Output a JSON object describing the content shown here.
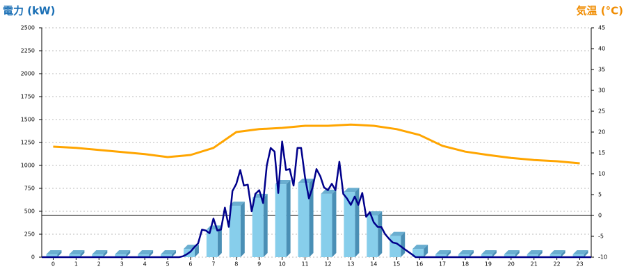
{
  "chart_data": {
    "type": "combo",
    "y_label": "電力 (kW)",
    "y2_label": "気温 (°C)",
    "categories": [
      "0",
      "1",
      "2",
      "3",
      "4",
      "5",
      "6",
      "7",
      "8",
      "9",
      "10",
      "11",
      "12",
      "13",
      "14",
      "15",
      "16",
      "17",
      "18",
      "19",
      "20",
      "21",
      "22",
      "23"
    ],
    "ylim": [
      0,
      2500
    ],
    "yticks": [
      0,
      250,
      500,
      750,
      1000,
      1250,
      1500,
      1750,
      2000,
      2250,
      2500
    ],
    "y2lim": [
      -10,
      45
    ],
    "y2ticks": [
      -10,
      -5,
      0,
      5,
      10,
      15,
      20,
      25,
      30,
      35,
      40,
      45
    ],
    "grid": true,
    "series": [
      {
        "type": "bar",
        "color": "#87ceeb",
        "values": [
          30,
          30,
          30,
          30,
          30,
          30,
          90,
          300,
          560,
          645,
          795,
          810,
          690,
          710,
          455,
          230,
          90,
          30,
          30,
          30,
          30,
          30,
          30,
          30
        ]
      },
      {
        "type": "line",
        "color": "#00008b",
        "x": [
          -0.5,
          5.5,
          5.67,
          5.83,
          6,
          6.17,
          6.33,
          6.5,
          6.67,
          6.83,
          7,
          7.17,
          7.33,
          7.5,
          7.67,
          7.83,
          8,
          8.17,
          8.33,
          8.5,
          8.67,
          8.83,
          9,
          9.17,
          9.33,
          9.5,
          9.67,
          9.83,
          10,
          10.17,
          10.33,
          10.5,
          10.67,
          10.83,
          11,
          11.17,
          11.33,
          11.5,
          11.67,
          11.83,
          12,
          12.17,
          12.33,
          12.5,
          12.67,
          12.83,
          13,
          13.17,
          13.33,
          13.5,
          13.67,
          13.83,
          14,
          14.17,
          14.33,
          14.5,
          14.67,
          14.83,
          15,
          15.17,
          15.33,
          15.5,
          15.67,
          15.83,
          16,
          23.5
        ],
        "values": [
          0,
          0,
          10,
          30,
          60,
          110,
          150,
          300,
          290,
          260,
          420,
          290,
          300,
          540,
          330,
          720,
          800,
          950,
          780,
          790,
          500,
          690,
          730,
          590,
          1000,
          1190,
          1150,
          700,
          1260,
          950,
          960,
          780,
          1190,
          1190,
          870,
          640,
          760,
          960,
          880,
          760,
          730,
          800,
          730,
          1040,
          690,
          640,
          570,
          660,
          570,
          700,
          440,
          490,
          380,
          330,
          330,
          250,
          200,
          160,
          150,
          120,
          90,
          60,
          30,
          0,
          0,
          0
        ]
      },
      {
        "type": "line",
        "axis": "y2",
        "color": "#ffa500",
        "values": [
          16.5,
          16.2,
          15.7,
          15.2,
          14.7,
          14,
          14.5,
          16.2,
          20,
          20.7,
          21,
          21.5,
          21.5,
          21.8,
          21.5,
          20.7,
          19.3,
          16.7,
          15.3,
          14.5,
          13.8,
          13.3,
          13,
          12.5
        ]
      }
    ]
  }
}
